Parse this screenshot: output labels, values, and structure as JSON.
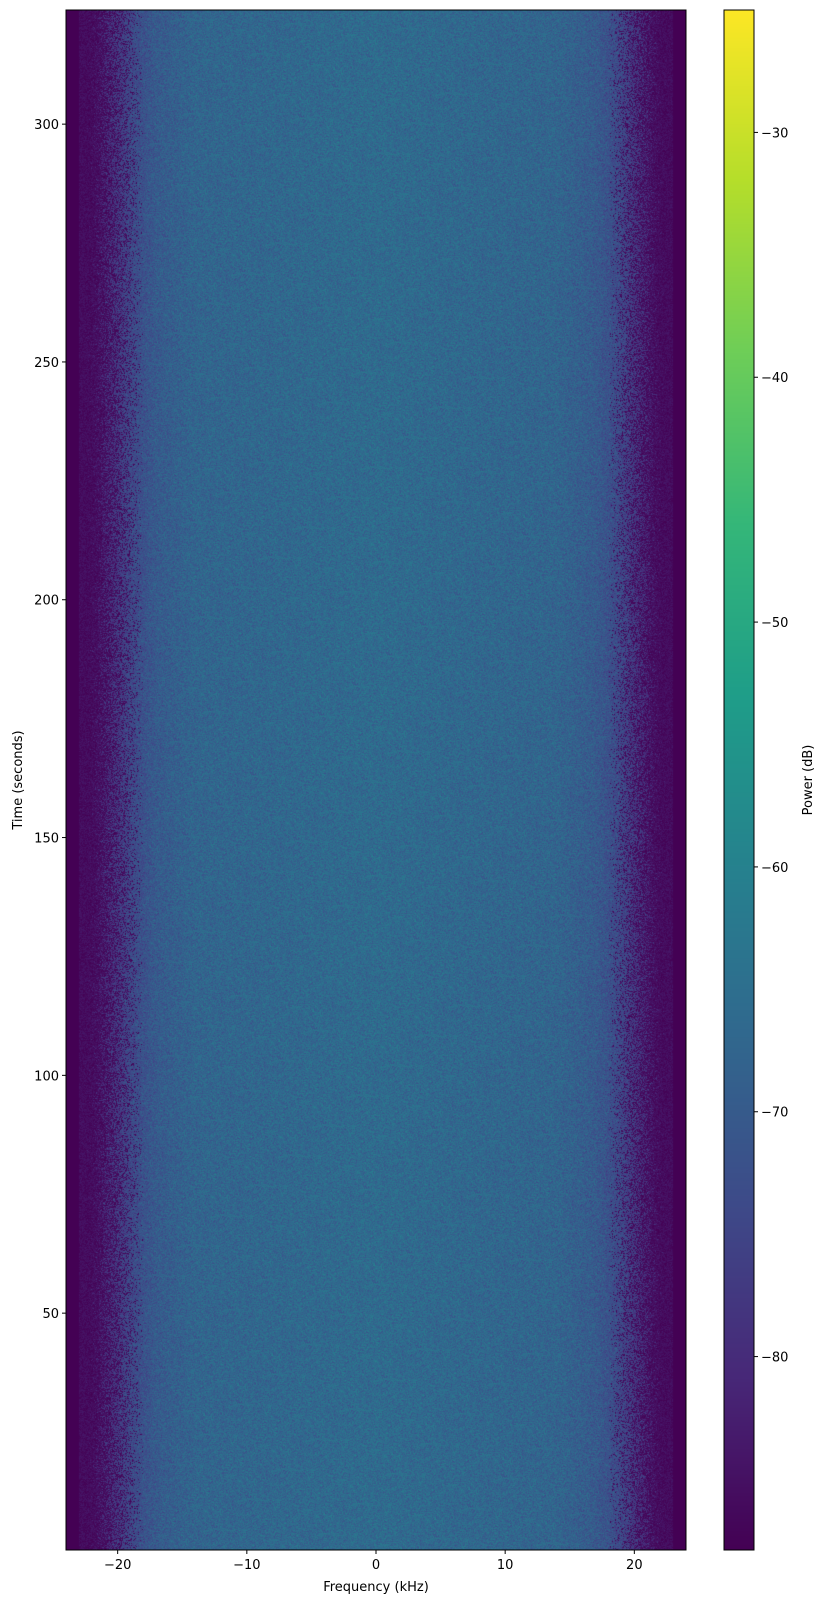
{
  "chart_data": {
    "type": "heatmap",
    "xlabel": "Frequency (kHz)",
    "ylabel": "Time (seconds)",
    "xlim": [
      -24,
      24
    ],
    "ylim": [
      0.2,
      324
    ],
    "xticks": [
      -20,
      -10,
      0,
      10,
      20
    ],
    "yticks": [
      50,
      100,
      150,
      200,
      250,
      300
    ],
    "colorbar": {
      "label": "Power (dB)",
      "colormap": "viridis",
      "range": [
        -87.9,
        -25
      ],
      "ticks": [
        -80,
        -70,
        -60,
        -50,
        -40,
        -30
      ]
    },
    "mean_power_profile": {
      "frequency_khz": [
        -24,
        -22.5,
        -21,
        -19,
        -17,
        -14,
        0,
        14,
        17,
        19,
        21,
        22.5,
        24
      ],
      "power_db": [
        -87.9,
        -87.9,
        -80,
        -74,
        -70,
        -67.5,
        -66,
        -67.5,
        -70,
        -74,
        -80,
        -87.9,
        -87.9
      ]
    },
    "grid": false
  }
}
